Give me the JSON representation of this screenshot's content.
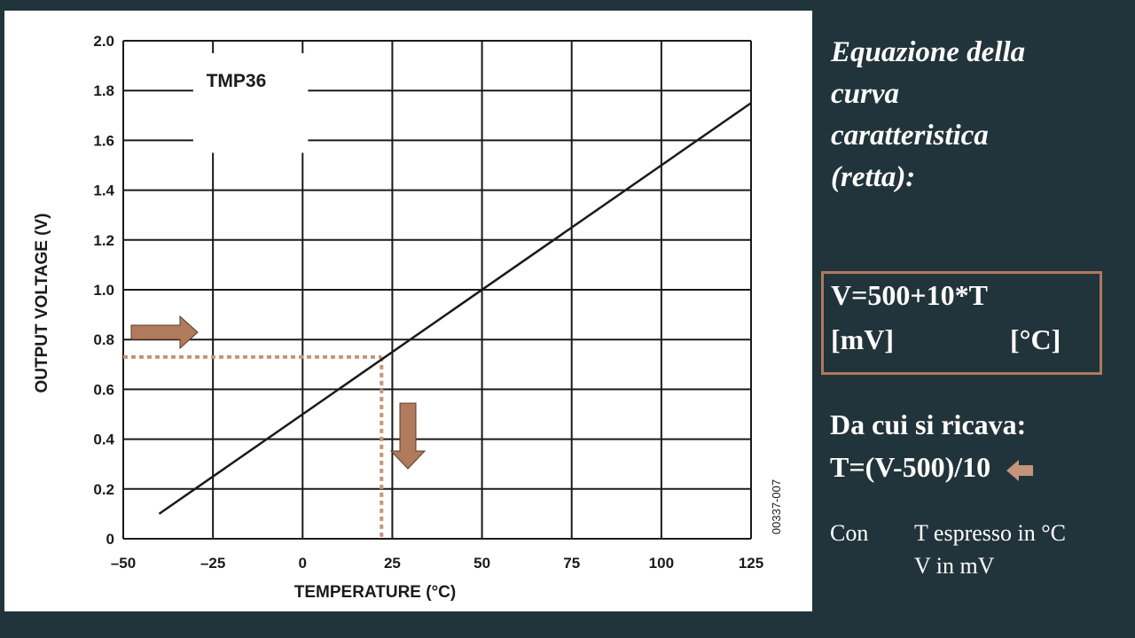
{
  "slide": {
    "title_lines": [
      "Equazione della",
      "curva",
      "caratteristica",
      "(retta):"
    ],
    "formula": {
      "equation": "V=500+10*T",
      "unit_v": "[mV]",
      "unit_t": "[°C]"
    },
    "derivation": {
      "intro": "Da cui si ricava:",
      "inverse": "T=(V-500)/10"
    },
    "note": {
      "con": "Con",
      "t_unit": "T espresso in °C",
      "v_unit": "V in mV"
    },
    "colors": {
      "background": "#22343b",
      "accent": "#b07a5c",
      "text": "#ffffff"
    }
  },
  "chart_data": {
    "type": "line",
    "label_box": "TMP36",
    "xlabel": "TEMPERATURE (°C)",
    "ylabel": "OUTPUT VOLTAGE (V)",
    "code": "00337-007",
    "xlim": [
      -50,
      125
    ],
    "ylim": [
      0,
      2.0
    ],
    "x_ticks": [
      -50,
      -25,
      0,
      25,
      50,
      75,
      100,
      125
    ],
    "x_tick_labels": [
      "–50",
      "–25",
      "0",
      "25",
      "50",
      "75",
      "100",
      "125"
    ],
    "y_ticks": [
      0,
      0.2,
      0.4,
      0.6,
      0.8,
      1.0,
      1.2,
      1.4,
      1.6,
      1.8,
      2.0
    ],
    "y_tick_labels": [
      "0",
      "0.2",
      "0.4",
      "0.6",
      "0.8",
      "1.0",
      "1.2",
      "1.4",
      "1.6",
      "1.8",
      "2.0"
    ],
    "grid": true,
    "series": [
      {
        "x": [
          -40,
          125
        ],
        "y": [
          0.1,
          1.75
        ]
      }
    ],
    "annotation": {
      "x": 22,
      "y": 0.73,
      "style": "dotted",
      "color": "#c4957a"
    }
  }
}
